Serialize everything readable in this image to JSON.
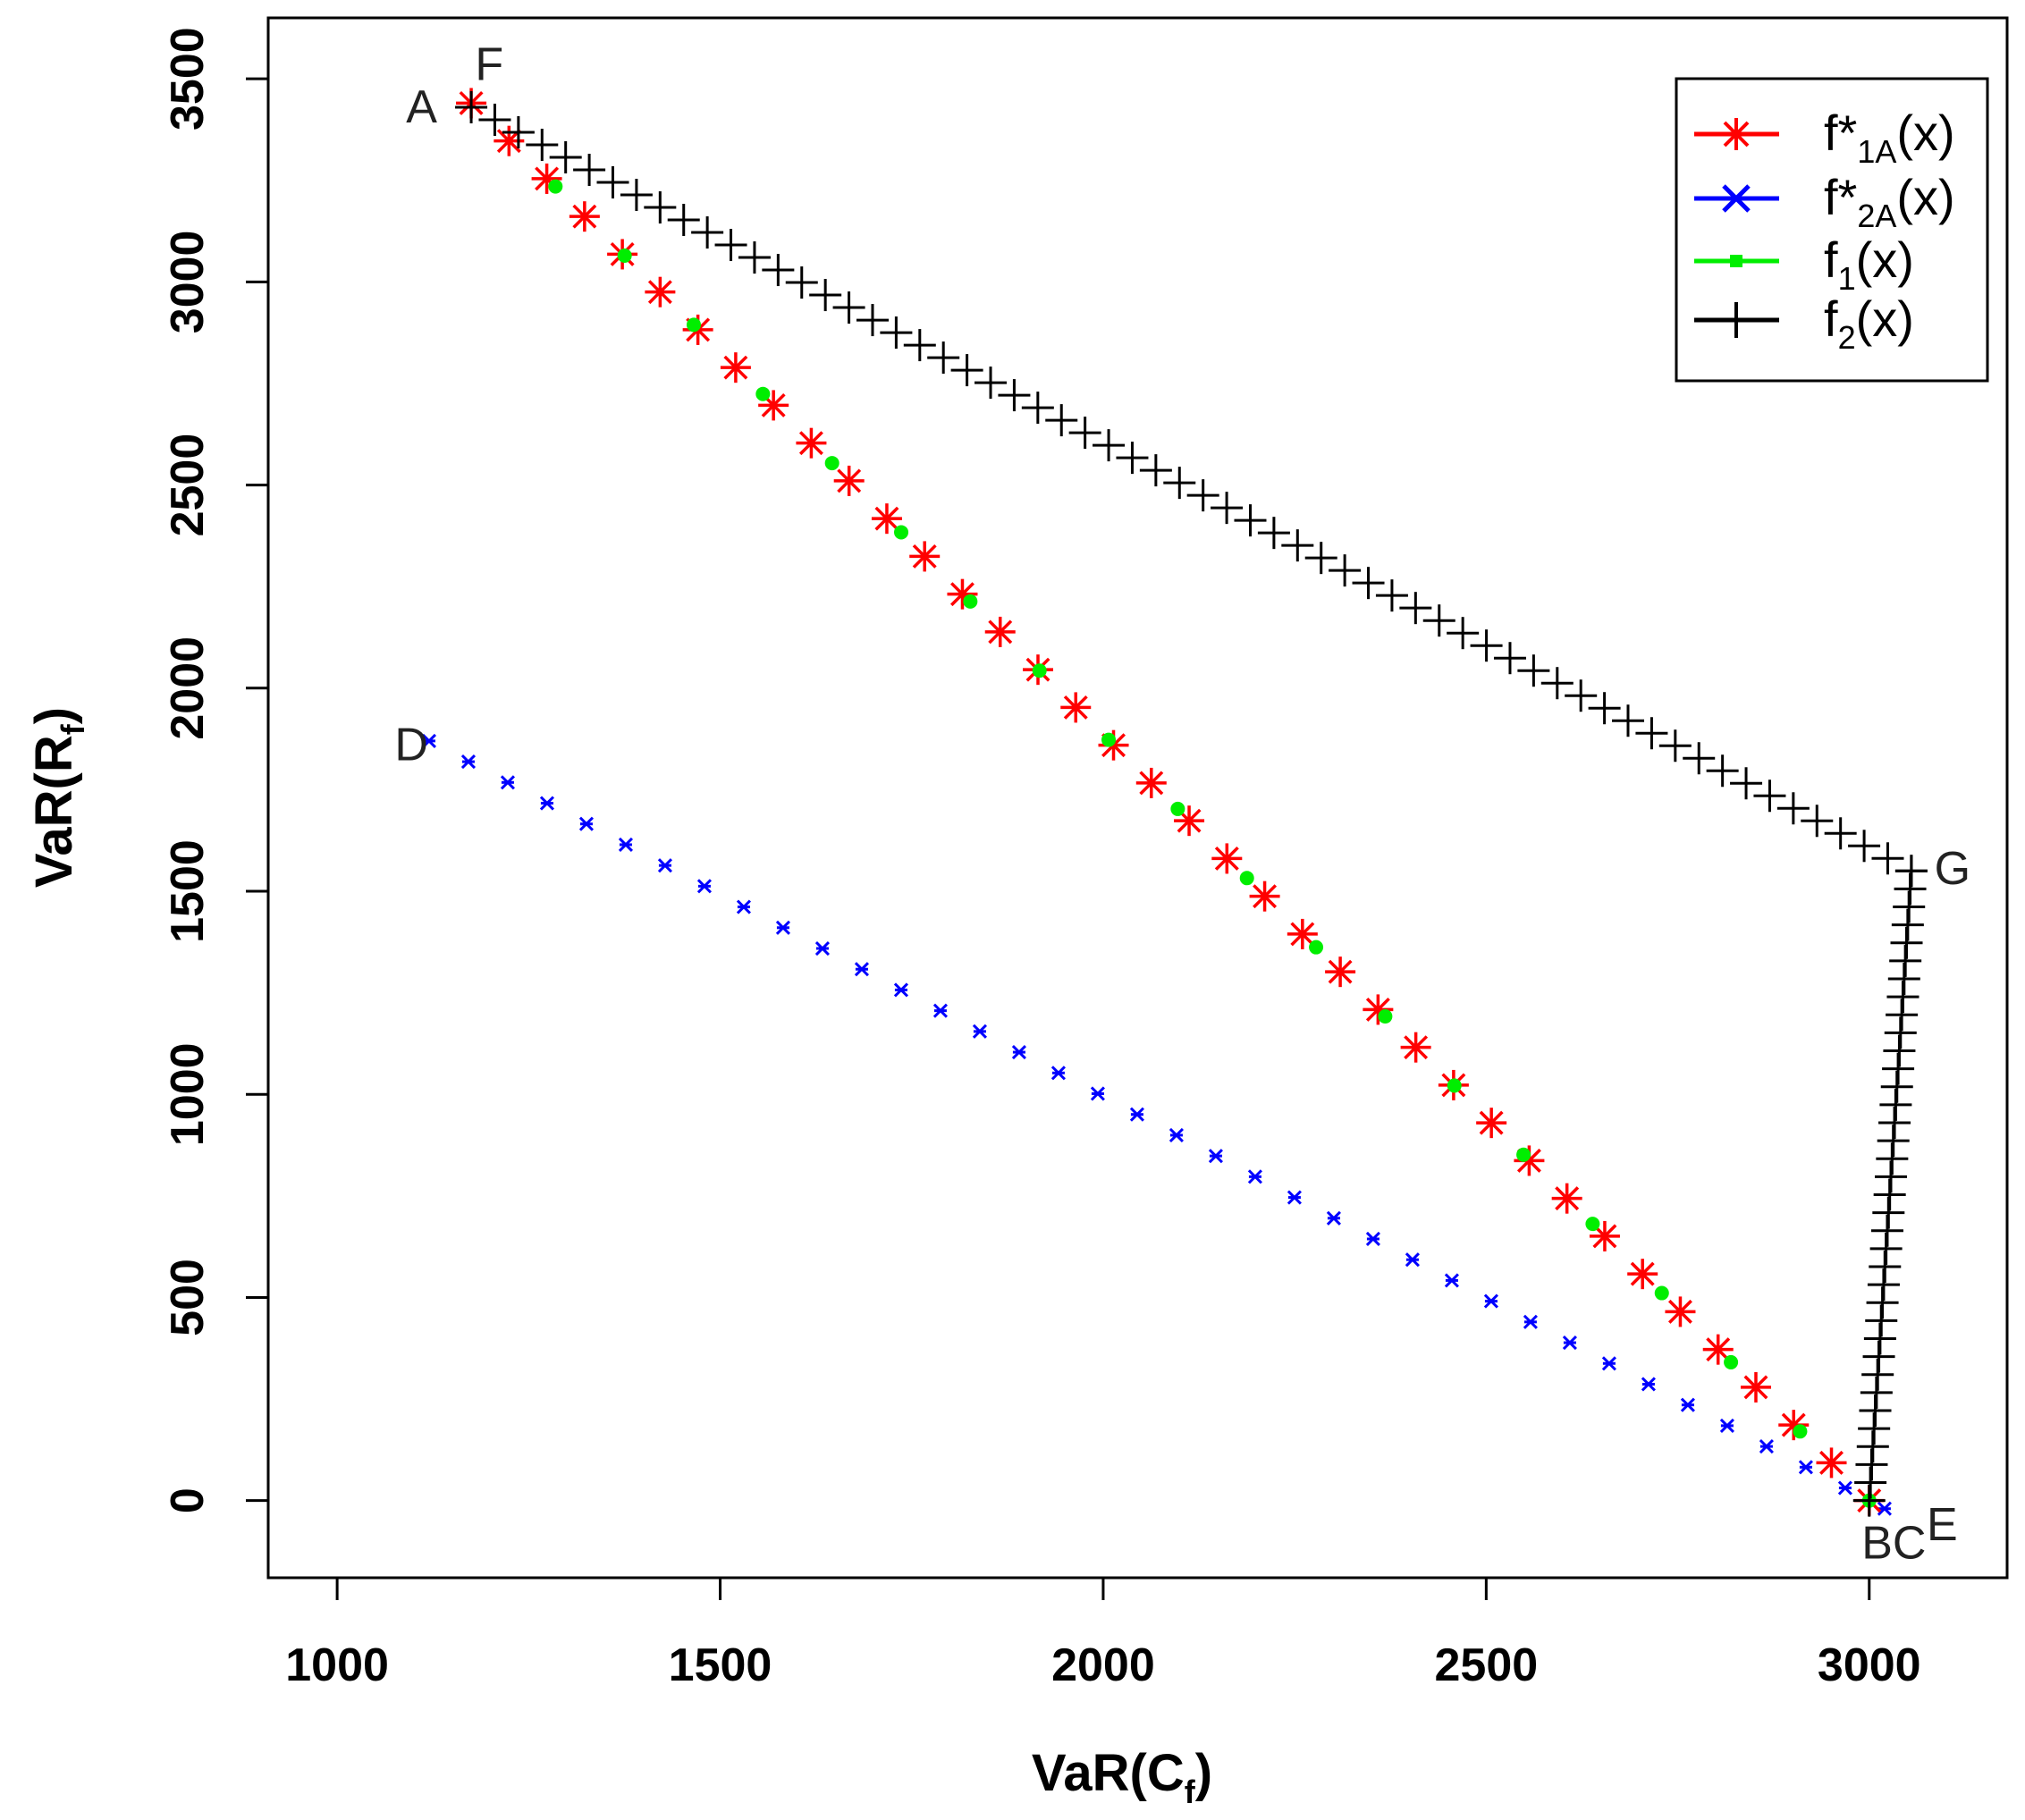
{
  "chart_data": {
    "type": "scatter",
    "xlabel": "VaR(C_f)",
    "ylabel": "VaR(R_f)",
    "xlabel_main": "VaR(C",
    "xlabel_sub": "f",
    "xlabel_close": ")",
    "ylabel_main": "VaR(R",
    "ylabel_sub": "f",
    "ylabel_close": ")",
    "xlim": [
      910,
      3180
    ],
    "ylim": [
      -190,
      3650
    ],
    "x_ticks": [
      1000,
      1500,
      2000,
      2500,
      3000
    ],
    "y_ticks": [
      0,
      500,
      1000,
      1500,
      2000,
      2500,
      3000,
      3500
    ],
    "legend_position": "top-right",
    "series": [
      {
        "key": "f1A",
        "name": "f*1A(x)",
        "label_main": "f*",
        "label_sub": "1A",
        "label_close": "(x)",
        "color": "#ff0000",
        "marker": "asterisk",
        "line": {
          "from": [
            1175,
            3440
          ],
          "to": [
            3000,
            0
          ]
        },
        "n_points": 38
      },
      {
        "key": "f2A",
        "name": "f*2A(x)",
        "label_main": "f*",
        "label_sub": "2A",
        "label_close": "(x)",
        "color": "#0000ff",
        "marker": "cross",
        "line": {
          "from": [
            1120,
            1870
          ],
          "to": [
            3020,
            -20
          ]
        },
        "n_points": 38
      },
      {
        "key": "f1",
        "name": "f1(x)",
        "label_main": "f",
        "label_sub": "1",
        "label_close": "(x)",
        "color": "#00ee00",
        "marker": "dot",
        "line": {
          "from": [
            1285,
            3235
          ],
          "to": [
            3000,
            0
          ]
        },
        "n_points": 20
      },
      {
        "key": "f2",
        "name": "f2(x)",
        "label_main": "f",
        "label_sub": "2",
        "label_close": "(x)",
        "color": "#000000",
        "marker": "plus",
        "segments": [
          {
            "from": [
              1175,
              3430
            ],
            "to": [
              3055,
              1550
            ],
            "n_points": 62
          },
          {
            "from": [
              3000,
              0
            ],
            "to": [
              3055,
              1550
            ],
            "n_points": 36
          }
        ]
      }
    ],
    "annotations": [
      {
        "text": "F",
        "x": 1180,
        "y": 3535
      },
      {
        "text": "A",
        "x": 1090,
        "y": 3430
      },
      {
        "text": "D",
        "x": 1075,
        "y": 1860
      },
      {
        "text": "G",
        "x": 3085,
        "y": 1555
      },
      {
        "text": "BC",
        "x": 2990,
        "y": -105
      },
      {
        "text": "E",
        "x": 3075,
        "y": -60
      }
    ]
  }
}
